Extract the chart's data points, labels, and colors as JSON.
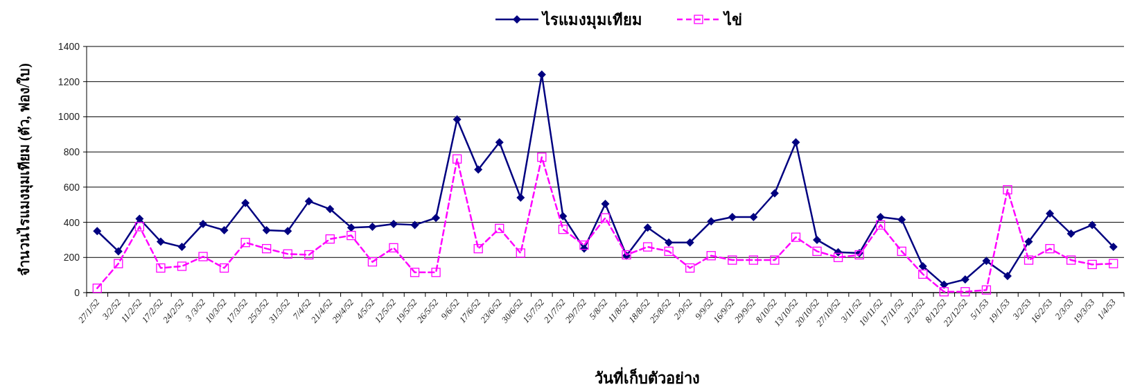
{
  "chart_data": {
    "type": "line",
    "xlabel": "วันที่เก็บตัวอย่าง",
    "ylabel": "จำนวนไรแมงมุมเทียม (ตัว, ฟอง/ใบ)",
    "categories": [
      "27/1/52",
      "3/2/52",
      "11/2/52",
      "17/2/52",
      "24/2/52",
      "3 /3/52",
      "10/3/52",
      "17/3/52",
      "25/3/52",
      "31/3/52",
      "7/4/52",
      "21/4/52",
      "29/4/52",
      "4/5/52",
      "12/5/52",
      "19/5/52",
      "26/5/52",
      "9/6/52",
      "17/6/52",
      "23/6/52",
      "30/6/52",
      "15/7/52",
      "21/7/52",
      "29/7/52",
      "5/8/52",
      "11/8/52",
      "18/8/52",
      "25/8/52",
      "2/9/52",
      "9/9/52",
      "16/9/52",
      "29/9/52",
      "8/10/52",
      "13/10/52",
      "20/10/52",
      "27/10/52",
      "3/11/52",
      "10/11/52",
      "17/11/52",
      "2/12/52",
      "8/12/52",
      "22/12/52",
      "5/1/53",
      "19/1/53",
      "3/2/53",
      "16/2/53",
      "2/3/53",
      "19/3/53",
      "1/4/53"
    ],
    "series": [
      {
        "name": "ไรแมงมุมเทียม",
        "color": "#000080",
        "marker": "diamond",
        "line_style": "solid",
        "values": [
          350,
          235,
          420,
          290,
          260,
          390,
          355,
          510,
          355,
          350,
          520,
          475,
          370,
          375,
          390,
          385,
          425,
          985,
          700,
          855,
          540,
          1240,
          435,
          250,
          505,
          210,
          370,
          285,
          285,
          405,
          430,
          430,
          565,
          855,
          300,
          230,
          225,
          430,
          415,
          150,
          45,
          75,
          180,
          95,
          290,
          450,
          335,
          385,
          260
        ]
      },
      {
        "name": "ไข่",
        "color": "#ff00ff",
        "marker": "square",
        "line_style": "dashed",
        "values": [
          25,
          165,
          375,
          140,
          150,
          205,
          140,
          285,
          250,
          220,
          215,
          305,
          325,
          175,
          255,
          115,
          115,
          760,
          250,
          365,
          225,
          770,
          360,
          270,
          425,
          215,
          260,
          235,
          140,
          210,
          185,
          185,
          185,
          315,
          235,
          200,
          215,
          385,
          235,
          105,
          5,
          5,
          15,
          585,
          185,
          250,
          185,
          160,
          165
        ]
      }
    ],
    "ylim": [
      0,
      1400
    ],
    "yticks": [
      0,
      200,
      400,
      600,
      800,
      1000,
      1200,
      1400
    ],
    "grid": "y",
    "legend": "top"
  }
}
